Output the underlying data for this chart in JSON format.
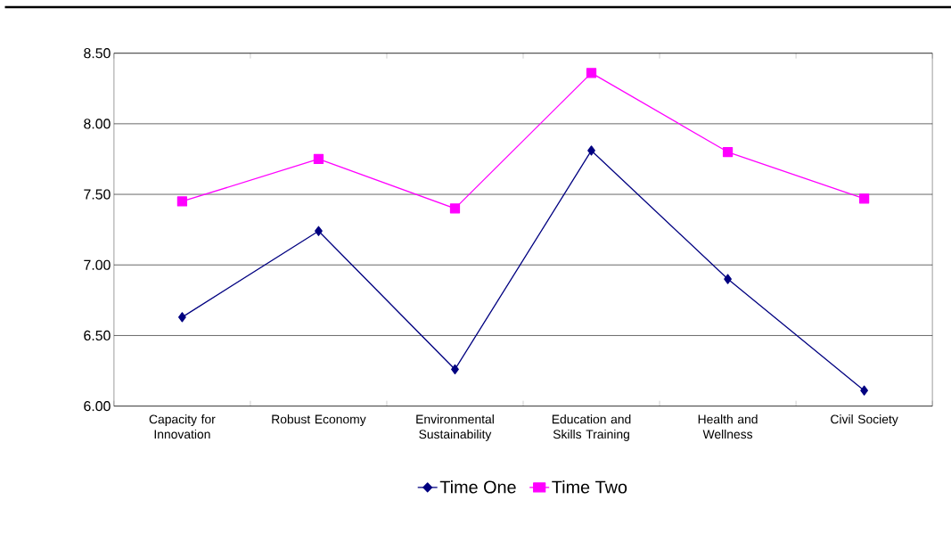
{
  "chart_data": {
    "type": "line",
    "categories": [
      "Capacity for Innovation",
      "Robust Economy",
      "Environmental Sustainability",
      "Education and Skills Training",
      "Health and Wellness",
      "Civil Society"
    ],
    "series": [
      {
        "name": "Time One",
        "color": "#000080",
        "marker": "diamond",
        "values": [
          6.63,
          7.24,
          6.26,
          7.81,
          6.9,
          6.11
        ]
      },
      {
        "name": "Time Two",
        "color": "#ff00ff",
        "marker": "square",
        "values": [
          7.45,
          7.75,
          7.4,
          8.36,
          7.8,
          7.47
        ]
      }
    ],
    "ylim": [
      6.0,
      8.5
    ],
    "yticks": [
      {
        "value": 6.0,
        "label": "6.00"
      },
      {
        "value": 6.5,
        "label": "6.50"
      },
      {
        "value": 7.0,
        "label": "7.00"
      },
      {
        "value": 7.5,
        "label": "7.50"
      },
      {
        "value": 8.0,
        "label": "8.00"
      },
      {
        "value": 8.5,
        "label": "8.50"
      }
    ],
    "grid": "y",
    "legend": "bottom",
    "line_style": "solid"
  }
}
